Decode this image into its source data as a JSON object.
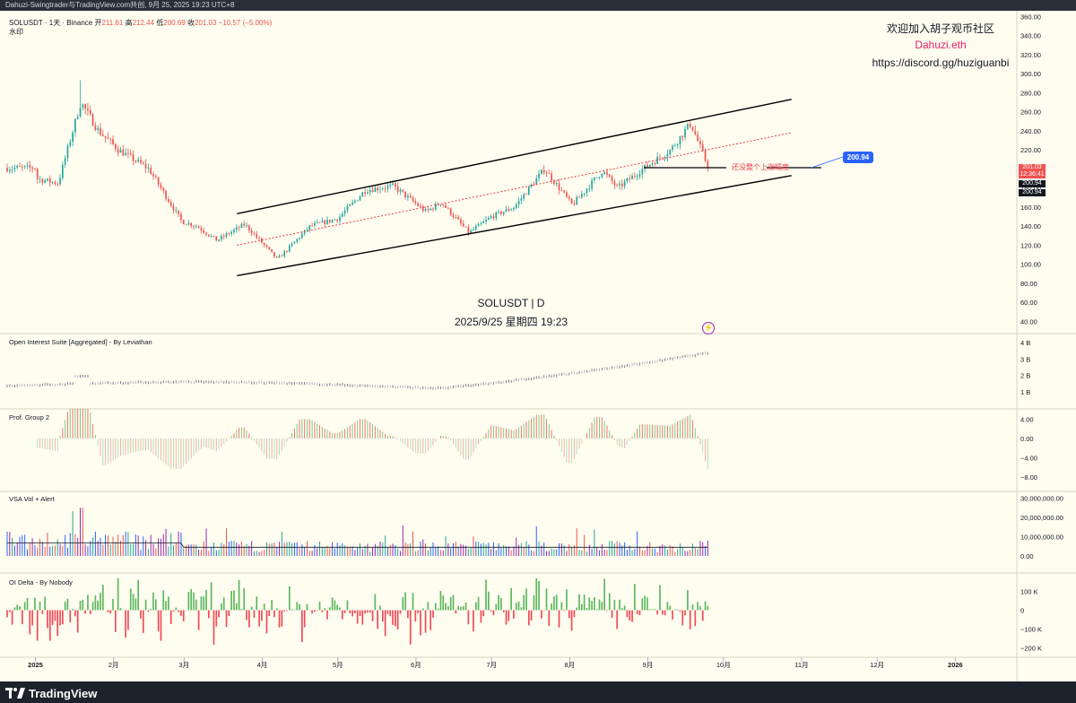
{
  "header": {
    "titlebar": "Dahuzi-Swingtrader与TradingView.com共创, 9月 25, 2025 19:23 UTC+8",
    "symbol_line": "SOLUSDT · 1天 · Binance",
    "ohlc": {
      "open_label": "开",
      "open": "211.61",
      "high_label": "高",
      "high": "212.44",
      "low_label": "低",
      "low": "200.69",
      "close_label": "收",
      "close": "201.03",
      "change": "−10.57 (−5.00%)"
    },
    "subtitle": "水印"
  },
  "watermark": {
    "line1": "欢迎加入胡子观币社区",
    "line2": "Dahuzi.eth",
    "line3": "https://discord.gg/huziguanbi",
    "center_symbol": "SOLUSDT | D",
    "center_time": "2025/9/25 星期四 19:23",
    "line2_color": "#e91e63"
  },
  "annotations": {
    "red_text": "还没整个上涨幅度",
    "target_bubble": "200.94",
    "price_tags": [
      "201.03",
      "12:36:41",
      "200.94",
      "200.94"
    ],
    "lightning_icon": "lightning-icon"
  },
  "panels": {
    "oi": "Open Interest Suite [Aggregated] - By Leviathan",
    "prof": "Prof. Group 2",
    "vsa": "VSA Vol + Alert",
    "oidelta": "OI Delta - By Nobody"
  },
  "axes": {
    "price_ticks": [
      "360.00",
      "340.00",
      "320.00",
      "300.00",
      "280.00",
      "260.00",
      "240.00",
      "220.00",
      "200.00",
      "180.00",
      "160.00",
      "140.00",
      "120.00",
      "100.00",
      "80.00",
      "60.00",
      "40.00"
    ],
    "oi_ticks": [
      "4 B",
      "3 B",
      "2 B",
      "1 B"
    ],
    "prof_ticks": [
      "4.00",
      "0.00",
      "−4.00",
      "−8.00"
    ],
    "vsa_ticks": [
      "30,000,000.00",
      "20,000,000.00",
      "10,000,000.00",
      "0.00"
    ],
    "delta_ticks": [
      "100 K",
      "0",
      "−100 K",
      "−200 K"
    ],
    "months": [
      "2025",
      "2月",
      "3月",
      "4月",
      "5月",
      "6月",
      "7月",
      "8月",
      "9月",
      "10月",
      "11月",
      "12月",
      "2026"
    ]
  },
  "footer": {
    "brand": "TradingView"
  },
  "colors": {
    "up": "#26a69a",
    "down": "#ef5350",
    "bg": "#fefdf0",
    "grid": "#e8e6d6",
    "accent": "#2962ff",
    "close_tag": "#ef5350"
  },
  "chart_data": {
    "type": "candlestick",
    "symbol": "SOLUSDT",
    "interval": "1D",
    "x_range": [
      "2025-01-01",
      "2025-09-25"
    ],
    "ylim": [
      40,
      360
    ],
    "last_close": 201.03,
    "trend_channel": {
      "upper": [
        [
          "2025-03-22",
          153
        ],
        [
          "2025-10-28",
          273
        ]
      ],
      "lower": [
        [
          "2025-03-22",
          88
        ],
        [
          "2025-10-28",
          193
        ]
      ],
      "mid": [
        [
          "2025-03-22",
          120
        ],
        [
          "2025-10-28",
          238
        ]
      ]
    },
    "anchor_points": [
      {
        "date": "2025-01-01",
        "price": 190
      },
      {
        "date": "2025-01-10",
        "price": 185
      },
      {
        "date": "2025-01-19",
        "price": 270
      },
      {
        "date": "2025-01-26",
        "price": 240
      },
      {
        "date": "2025-02-03",
        "price": 220
      },
      {
        "date": "2025-02-15",
        "price": 200
      },
      {
        "date": "2025-02-28",
        "price": 145
      },
      {
        "date": "2025-03-06",
        "price": 140
      },
      {
        "date": "2025-03-14",
        "price": 125
      },
      {
        "date": "2025-03-25",
        "price": 142
      },
      {
        "date": "2025-04-07",
        "price": 105
      },
      {
        "date": "2025-04-20",
        "price": 140
      },
      {
        "date": "2025-05-01",
        "price": 148
      },
      {
        "date": "2025-05-12",
        "price": 178
      },
      {
        "date": "2025-05-23",
        "price": 182
      },
      {
        "date": "2025-06-05",
        "price": 155
      },
      {
        "date": "2025-06-11",
        "price": 165
      },
      {
        "date": "2025-06-22",
        "price": 133
      },
      {
        "date": "2025-07-01",
        "price": 150
      },
      {
        "date": "2025-07-10",
        "price": 160
      },
      {
        "date": "2025-07-22",
        "price": 200
      },
      {
        "date": "2025-08-02",
        "price": 162
      },
      {
        "date": "2025-08-14",
        "price": 198
      },
      {
        "date": "2025-08-20",
        "price": 180
      },
      {
        "date": "2025-08-30",
        "price": 200
      },
      {
        "date": "2025-09-10",
        "price": 220
      },
      {
        "date": "2025-09-18",
        "price": 248
      },
      {
        "date": "2025-09-25",
        "price": 201
      }
    ]
  }
}
